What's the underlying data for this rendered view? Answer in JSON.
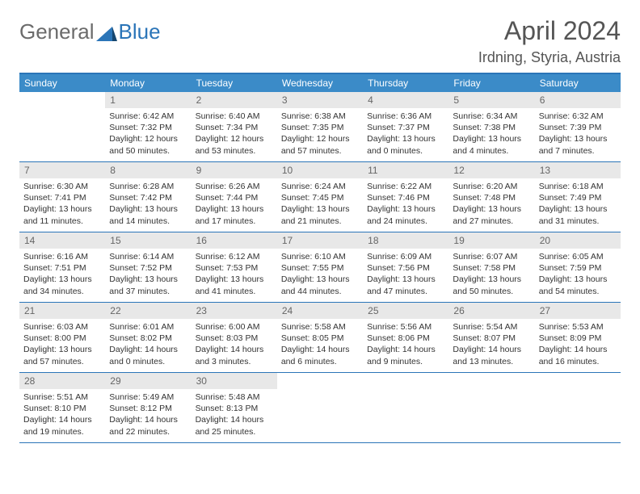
{
  "logo": {
    "text_gray": "General",
    "text_blue": "Blue"
  },
  "title": "April 2024",
  "location": "Irdning, Styria, Austria",
  "colors": {
    "header_bg": "#3b8bc8",
    "header_text": "#ffffff",
    "border": "#2b75b8",
    "daynum_bg": "#e8e8e8",
    "daynum_text": "#666666",
    "body_text": "#333333",
    "logo_gray": "#6b6b6b",
    "logo_blue": "#2b75b8"
  },
  "day_names": [
    "Sunday",
    "Monday",
    "Tuesday",
    "Wednesday",
    "Thursday",
    "Friday",
    "Saturday"
  ],
  "weeks": [
    [
      {
        "empty": true
      },
      {
        "n": "1",
        "sunrise": "Sunrise: 6:42 AM",
        "sunset": "Sunset: 7:32 PM",
        "dl1": "Daylight: 12 hours",
        "dl2": "and 50 minutes."
      },
      {
        "n": "2",
        "sunrise": "Sunrise: 6:40 AM",
        "sunset": "Sunset: 7:34 PM",
        "dl1": "Daylight: 12 hours",
        "dl2": "and 53 minutes."
      },
      {
        "n": "3",
        "sunrise": "Sunrise: 6:38 AM",
        "sunset": "Sunset: 7:35 PM",
        "dl1": "Daylight: 12 hours",
        "dl2": "and 57 minutes."
      },
      {
        "n": "4",
        "sunrise": "Sunrise: 6:36 AM",
        "sunset": "Sunset: 7:37 PM",
        "dl1": "Daylight: 13 hours",
        "dl2": "and 0 minutes."
      },
      {
        "n": "5",
        "sunrise": "Sunrise: 6:34 AM",
        "sunset": "Sunset: 7:38 PM",
        "dl1": "Daylight: 13 hours",
        "dl2": "and 4 minutes."
      },
      {
        "n": "6",
        "sunrise": "Sunrise: 6:32 AM",
        "sunset": "Sunset: 7:39 PM",
        "dl1": "Daylight: 13 hours",
        "dl2": "and 7 minutes."
      }
    ],
    [
      {
        "n": "7",
        "sunrise": "Sunrise: 6:30 AM",
        "sunset": "Sunset: 7:41 PM",
        "dl1": "Daylight: 13 hours",
        "dl2": "and 11 minutes."
      },
      {
        "n": "8",
        "sunrise": "Sunrise: 6:28 AM",
        "sunset": "Sunset: 7:42 PM",
        "dl1": "Daylight: 13 hours",
        "dl2": "and 14 minutes."
      },
      {
        "n": "9",
        "sunrise": "Sunrise: 6:26 AM",
        "sunset": "Sunset: 7:44 PM",
        "dl1": "Daylight: 13 hours",
        "dl2": "and 17 minutes."
      },
      {
        "n": "10",
        "sunrise": "Sunrise: 6:24 AM",
        "sunset": "Sunset: 7:45 PM",
        "dl1": "Daylight: 13 hours",
        "dl2": "and 21 minutes."
      },
      {
        "n": "11",
        "sunrise": "Sunrise: 6:22 AM",
        "sunset": "Sunset: 7:46 PM",
        "dl1": "Daylight: 13 hours",
        "dl2": "and 24 minutes."
      },
      {
        "n": "12",
        "sunrise": "Sunrise: 6:20 AM",
        "sunset": "Sunset: 7:48 PM",
        "dl1": "Daylight: 13 hours",
        "dl2": "and 27 minutes."
      },
      {
        "n": "13",
        "sunrise": "Sunrise: 6:18 AM",
        "sunset": "Sunset: 7:49 PM",
        "dl1": "Daylight: 13 hours",
        "dl2": "and 31 minutes."
      }
    ],
    [
      {
        "n": "14",
        "sunrise": "Sunrise: 6:16 AM",
        "sunset": "Sunset: 7:51 PM",
        "dl1": "Daylight: 13 hours",
        "dl2": "and 34 minutes."
      },
      {
        "n": "15",
        "sunrise": "Sunrise: 6:14 AM",
        "sunset": "Sunset: 7:52 PM",
        "dl1": "Daylight: 13 hours",
        "dl2": "and 37 minutes."
      },
      {
        "n": "16",
        "sunrise": "Sunrise: 6:12 AM",
        "sunset": "Sunset: 7:53 PM",
        "dl1": "Daylight: 13 hours",
        "dl2": "and 41 minutes."
      },
      {
        "n": "17",
        "sunrise": "Sunrise: 6:10 AM",
        "sunset": "Sunset: 7:55 PM",
        "dl1": "Daylight: 13 hours",
        "dl2": "and 44 minutes."
      },
      {
        "n": "18",
        "sunrise": "Sunrise: 6:09 AM",
        "sunset": "Sunset: 7:56 PM",
        "dl1": "Daylight: 13 hours",
        "dl2": "and 47 minutes."
      },
      {
        "n": "19",
        "sunrise": "Sunrise: 6:07 AM",
        "sunset": "Sunset: 7:58 PM",
        "dl1": "Daylight: 13 hours",
        "dl2": "and 50 minutes."
      },
      {
        "n": "20",
        "sunrise": "Sunrise: 6:05 AM",
        "sunset": "Sunset: 7:59 PM",
        "dl1": "Daylight: 13 hours",
        "dl2": "and 54 minutes."
      }
    ],
    [
      {
        "n": "21",
        "sunrise": "Sunrise: 6:03 AM",
        "sunset": "Sunset: 8:00 PM",
        "dl1": "Daylight: 13 hours",
        "dl2": "and 57 minutes."
      },
      {
        "n": "22",
        "sunrise": "Sunrise: 6:01 AM",
        "sunset": "Sunset: 8:02 PM",
        "dl1": "Daylight: 14 hours",
        "dl2": "and 0 minutes."
      },
      {
        "n": "23",
        "sunrise": "Sunrise: 6:00 AM",
        "sunset": "Sunset: 8:03 PM",
        "dl1": "Daylight: 14 hours",
        "dl2": "and 3 minutes."
      },
      {
        "n": "24",
        "sunrise": "Sunrise: 5:58 AM",
        "sunset": "Sunset: 8:05 PM",
        "dl1": "Daylight: 14 hours",
        "dl2": "and 6 minutes."
      },
      {
        "n": "25",
        "sunrise": "Sunrise: 5:56 AM",
        "sunset": "Sunset: 8:06 PM",
        "dl1": "Daylight: 14 hours",
        "dl2": "and 9 minutes."
      },
      {
        "n": "26",
        "sunrise": "Sunrise: 5:54 AM",
        "sunset": "Sunset: 8:07 PM",
        "dl1": "Daylight: 14 hours",
        "dl2": "and 13 minutes."
      },
      {
        "n": "27",
        "sunrise": "Sunrise: 5:53 AM",
        "sunset": "Sunset: 8:09 PM",
        "dl1": "Daylight: 14 hours",
        "dl2": "and 16 minutes."
      }
    ],
    [
      {
        "n": "28",
        "sunrise": "Sunrise: 5:51 AM",
        "sunset": "Sunset: 8:10 PM",
        "dl1": "Daylight: 14 hours",
        "dl2": "and 19 minutes."
      },
      {
        "n": "29",
        "sunrise": "Sunrise: 5:49 AM",
        "sunset": "Sunset: 8:12 PM",
        "dl1": "Daylight: 14 hours",
        "dl2": "and 22 minutes."
      },
      {
        "n": "30",
        "sunrise": "Sunrise: 5:48 AM",
        "sunset": "Sunset: 8:13 PM",
        "dl1": "Daylight: 14 hours",
        "dl2": "and 25 minutes."
      },
      {
        "empty": true
      },
      {
        "empty": true
      },
      {
        "empty": true
      },
      {
        "empty": true
      }
    ]
  ]
}
